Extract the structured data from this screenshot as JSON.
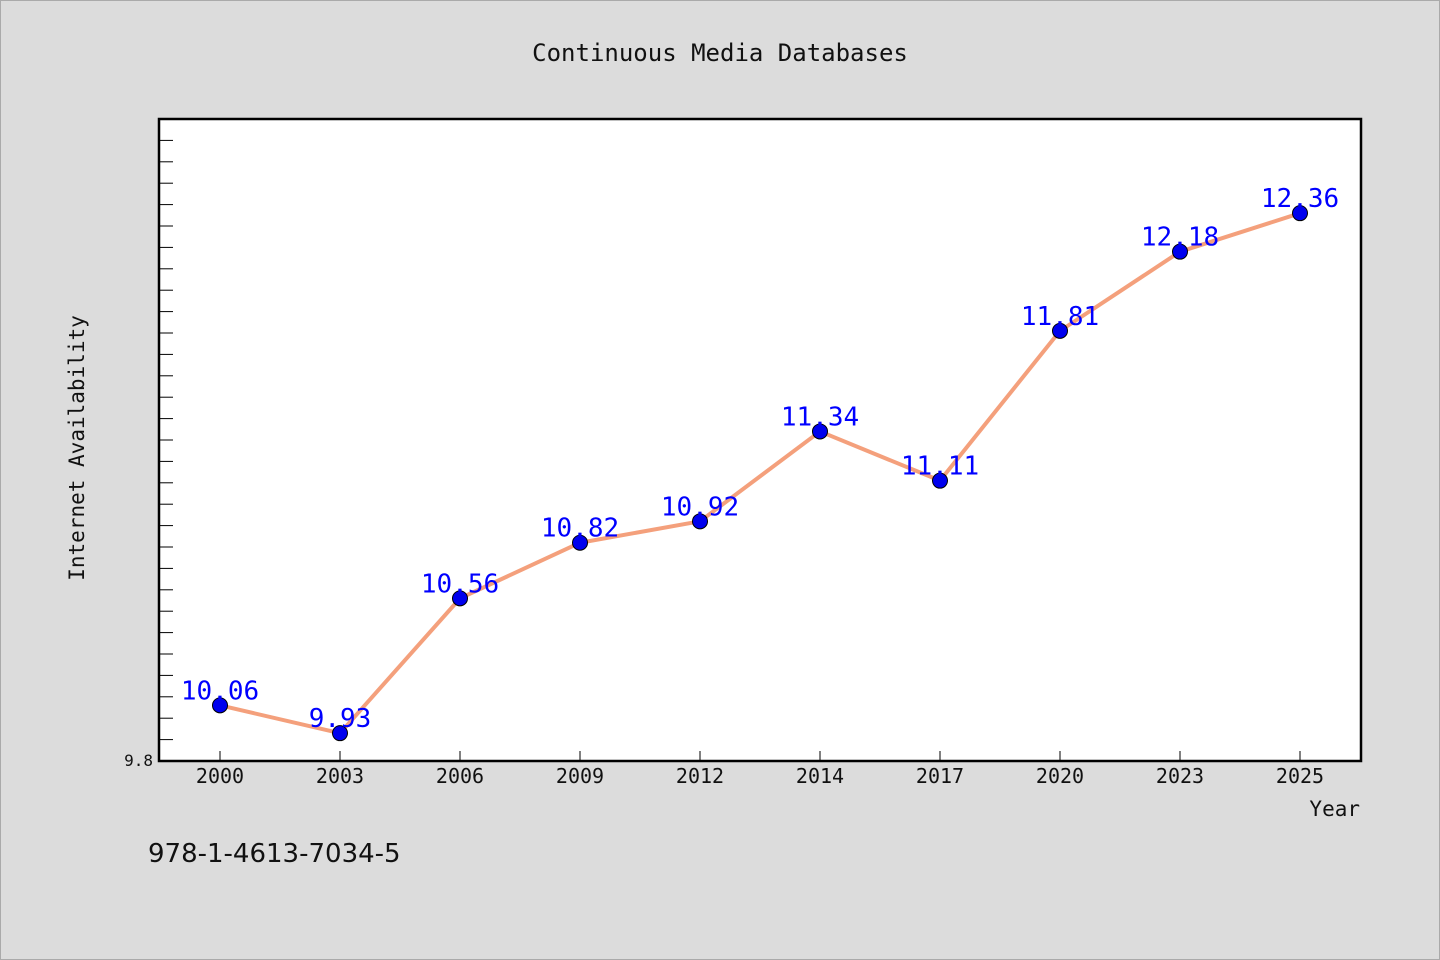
{
  "colors": {
    "background": "#dcdcdc",
    "plot_background": "#ffffff",
    "line": "#f4a07c",
    "marker": "#0000ee",
    "data_label": "#0000ff",
    "axis": "#000000"
  },
  "footer": {
    "isbn": "978-1-4613-7034-5"
  },
  "chart_data": {
    "type": "line",
    "title": "Continuous Media Databases",
    "xlabel": "Year",
    "ylabel": "Internet Availability",
    "categories": [
      "2000",
      "2003",
      "2006",
      "2009",
      "2012",
      "2014",
      "2017",
      "2020",
      "2023",
      "2025"
    ],
    "series": [
      {
        "values": [
          10.06,
          9.93,
          10.56,
          10.82,
          10.92,
          11.34,
          11.11,
          11.81,
          12.18,
          12.36
        ],
        "labels": [
          "10.06",
          "9.93",
          "10.56",
          "10.82",
          "10.92",
          "11.34",
          "11.11",
          "11.81",
          "12.18",
          "12.36"
        ]
      }
    ],
    "ylim": [
      9.8,
      12.8
    ],
    "yticks": [
      {
        "value": 9.8,
        "label": "9.8"
      }
    ],
    "y_minor_step": 0.1,
    "grid": false,
    "legend": "none",
    "markers": "circle"
  }
}
